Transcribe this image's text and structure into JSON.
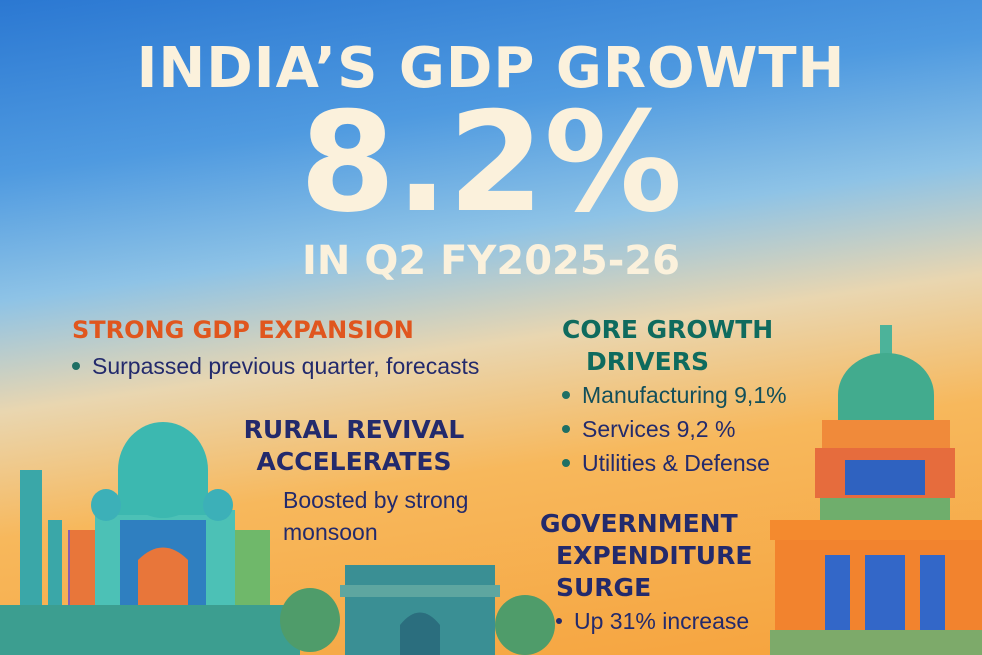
{
  "header": {
    "title": "INDIA’S GDP GROWTH",
    "headline_value": "8.2%",
    "subtitle": "IN Q2 FY2025-26"
  },
  "sections": {
    "strong": {
      "heading": "STRONG GDP EXPANSION",
      "bullets": [
        "Surpassed previous quarter, forecasts"
      ]
    },
    "rural": {
      "heading_line1": "RURAL REVIVAL",
      "heading_line2": "ACCELERATES",
      "text_line1": "Boosted by strong",
      "text_line2": "monsoon"
    },
    "core": {
      "heading_line1": "CORE GROWTH",
      "heading_line2": "DRIVERS",
      "bullets": [
        "Manufacturing 9,1%",
        "Services 9,2 %",
        "Utilities & Defense"
      ]
    },
    "gov": {
      "heading_line1": "GOVERNMENT",
      "heading_line2": "EXPENDITURE",
      "heading_line3": "SURGE",
      "bullets": [
        "Up 31% increase"
      ]
    }
  },
  "colors": {
    "accent_orange": "#e0561e",
    "teal": "#0f6b5e",
    "navy": "#232a6c",
    "cream": "#fbf1dc"
  },
  "illustrations": [
    "taj-mahal",
    "india-gate",
    "parliament-building"
  ]
}
